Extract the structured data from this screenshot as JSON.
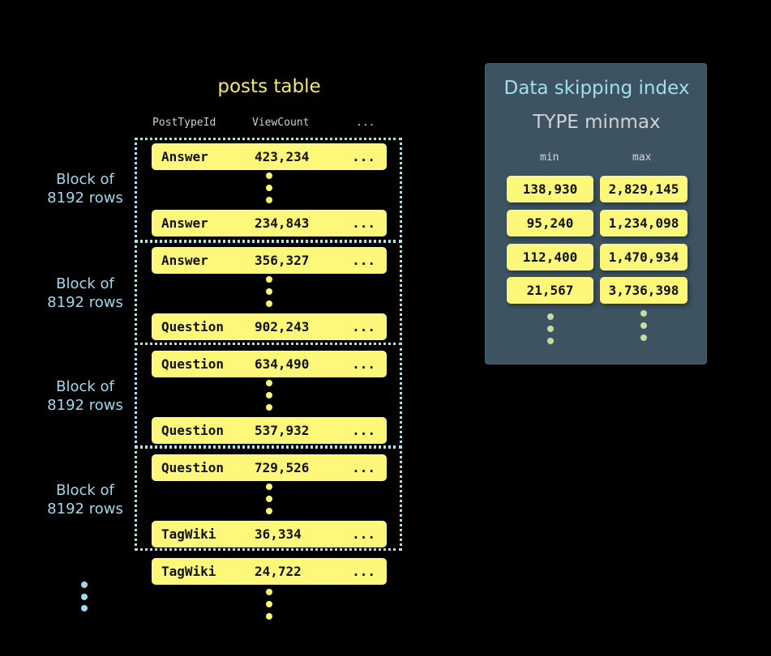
{
  "posts_table": {
    "title": "posts table",
    "headers": [
      "PostTypeId",
      "ViewCount",
      "..."
    ],
    "rows": [
      {
        "type": "Answer",
        "views": "423,234",
        "more": "..."
      },
      {
        "type": "Answer",
        "views": "234,843",
        "more": "..."
      },
      {
        "type": "Answer",
        "views": "356,327",
        "more": "..."
      },
      {
        "type": "Question",
        "views": "902,243",
        "more": "..."
      },
      {
        "type": "Question",
        "views": "634,490",
        "more": "..."
      },
      {
        "type": "Question",
        "views": "537,932",
        "more": "..."
      },
      {
        "type": "Question",
        "views": "729,526",
        "more": "..."
      },
      {
        "type": "TagWiki",
        "views": "36,334",
        "more": "..."
      },
      {
        "type": "TagWiki",
        "views": "24,722",
        "more": "..."
      }
    ],
    "block_label_line1": "Block of",
    "block_label_line2": "8192 rows"
  },
  "index_panel": {
    "title": "Data skipping index",
    "subtitle": "TYPE minmax",
    "min_label": "min",
    "max_label": "max",
    "entries": [
      {
        "min": "138,930",
        "max": "2,829,145"
      },
      {
        "min": "95,240",
        "max": "1,234,098"
      },
      {
        "min": "112,400",
        "max": "1,470,934"
      },
      {
        "min": "21,567",
        "max": "3,736,398"
      }
    ]
  },
  "colors": {
    "row_fill": "#fdf77a",
    "block_border": "#a8e4ef",
    "panel_bg": "#3d5361",
    "title_yellow": "#f5e968",
    "label_blue": "#9fd9ee"
  }
}
